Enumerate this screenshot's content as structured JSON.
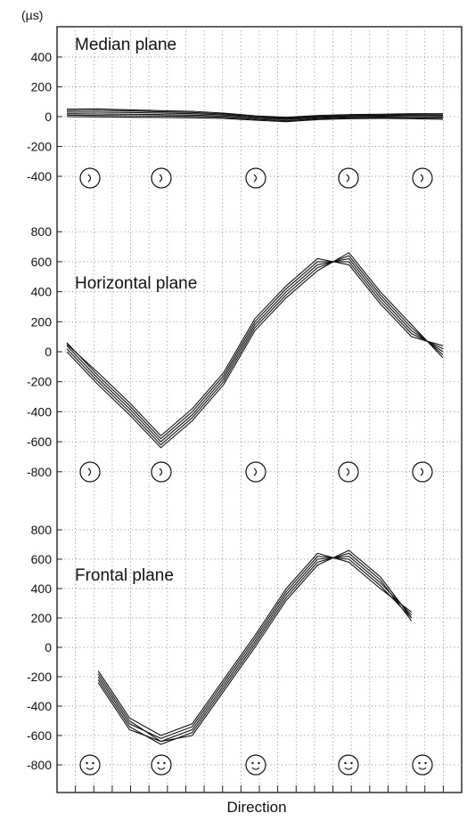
{
  "unit_label": "(µs)",
  "xlabel": "Direction",
  "chart_data": [
    {
      "type": "line",
      "title": "Median plane",
      "ylim": [
        -500,
        500
      ],
      "yticks": [
        400,
        200,
        0,
        -200,
        -400
      ],
      "x": [
        0,
        1,
        2,
        3,
        4,
        5,
        6,
        7,
        8,
        9,
        10,
        11,
        12
      ],
      "series": [
        {
          "values": [
            40,
            42,
            38,
            32,
            28,
            18,
            0,
            -10,
            2,
            8,
            10,
            14,
            12
          ]
        },
        {
          "values": [
            30,
            30,
            28,
            24,
            20,
            12,
            -5,
            -14,
            -2,
            4,
            6,
            8,
            6
          ]
        },
        {
          "values": [
            20,
            18,
            16,
            14,
            10,
            4,
            -12,
            -20,
            -8,
            -2,
            0,
            0,
            -2
          ]
        },
        {
          "values": [
            10,
            8,
            6,
            4,
            2,
            -4,
            -18,
            -28,
            -14,
            -8,
            -6,
            -8,
            -10
          ]
        },
        {
          "values": [
            0,
            -2,
            -4,
            -6,
            -8,
            -12,
            -24,
            -34,
            -20,
            -14,
            -12,
            -14,
            -18
          ]
        },
        {
          "values": [
            50,
            52,
            46,
            40,
            36,
            24,
            6,
            -4,
            8,
            14,
            16,
            20,
            20
          ]
        }
      ]
    },
    {
      "type": "line",
      "title": "Horizontal plane",
      "ylim": [
        -900,
        900
      ],
      "yticks": [
        800,
        600,
        400,
        200,
        0,
        -200,
        -400,
        -600,
        -800
      ],
      "x": [
        0,
        1,
        2,
        3,
        4,
        5,
        6,
        7,
        8,
        9,
        10,
        11,
        12
      ],
      "series": [
        {
          "values": [
            20,
            -200,
            -400,
            -620,
            -440,
            -200,
            160,
            380,
            560,
            640,
            380,
            160,
            -20
          ]
        },
        {
          "values": [
            40,
            -180,
            -380,
            -600,
            -420,
            -180,
            180,
            400,
            580,
            620,
            360,
            140,
            0
          ]
        },
        {
          "values": [
            60,
            -160,
            -360,
            -580,
            -400,
            -160,
            200,
            420,
            600,
            600,
            340,
            120,
            20
          ]
        },
        {
          "values": [
            0,
            -220,
            -420,
            -640,
            -460,
            -220,
            140,
            360,
            540,
            660,
            400,
            180,
            -40
          ]
        },
        {
          "values": [
            50,
            -140,
            -340,
            -560,
            -380,
            -140,
            220,
            440,
            620,
            580,
            320,
            100,
            40
          ]
        }
      ]
    },
    {
      "type": "line",
      "title": "Frontal plane",
      "ylim": [
        -900,
        900
      ],
      "yticks": [
        800,
        600,
        400,
        200,
        0,
        -200,
        -400,
        -600,
        -800
      ],
      "x": [
        1,
        2,
        3,
        4,
        5,
        6,
        7,
        8,
        9,
        10,
        11
      ],
      "series": [
        {
          "values": [
            -180,
            -500,
            -640,
            -560,
            -260,
            40,
            360,
            600,
            620,
            440,
            220
          ]
        },
        {
          "values": [
            -200,
            -520,
            -620,
            -540,
            -240,
            60,
            380,
            620,
            600,
            420,
            200
          ]
        },
        {
          "values": [
            -160,
            -480,
            -600,
            -520,
            -220,
            80,
            400,
            640,
            580,
            400,
            240
          ]
        },
        {
          "values": [
            -220,
            -540,
            -660,
            -580,
            -280,
            20,
            340,
            580,
            640,
            460,
            180
          ]
        },
        {
          "values": [
            -240,
            -560,
            -640,
            -600,
            -300,
            0,
            320,
            560,
            660,
            480,
            200
          ]
        }
      ]
    }
  ]
}
